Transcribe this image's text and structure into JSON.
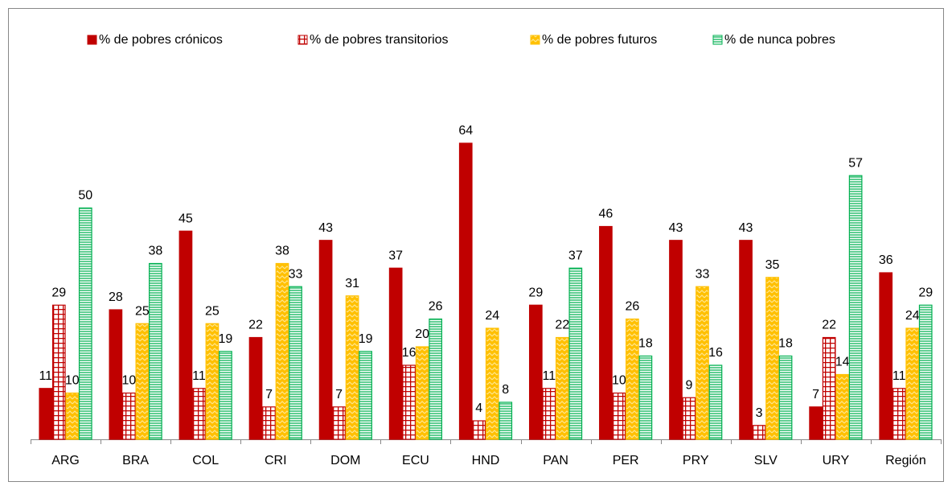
{
  "chart_data": {
    "type": "bar",
    "categories": [
      "ARG",
      "BRA",
      "COL",
      "CRI",
      "DOM",
      "ECU",
      "HND",
      "PAN",
      "PER",
      "PRY",
      "SLV",
      "URY",
      "Región"
    ],
    "series": [
      {
        "name": "% de pobres crónicos",
        "color": "#c00000",
        "values": [
          11,
          28,
          45,
          22,
          43,
          37,
          64,
          29,
          46,
          43,
          43,
          7,
          36
        ]
      },
      {
        "name": "% de pobres transitorios",
        "color": "#c00000",
        "values": [
          29,
          10,
          11,
          7,
          7,
          16,
          4,
          11,
          10,
          9,
          3,
          22,
          11
        ]
      },
      {
        "name": "% de pobres futuros",
        "color": "#ffc000",
        "values": [
          10,
          25,
          25,
          38,
          31,
          20,
          24,
          22,
          26,
          33,
          35,
          14,
          24
        ]
      },
      {
        "name": "% de nunca pobres",
        "color": "#00b050",
        "values": [
          50,
          38,
          19,
          33,
          19,
          26,
          8,
          37,
          18,
          16,
          18,
          57,
          29
        ]
      }
    ]
  }
}
